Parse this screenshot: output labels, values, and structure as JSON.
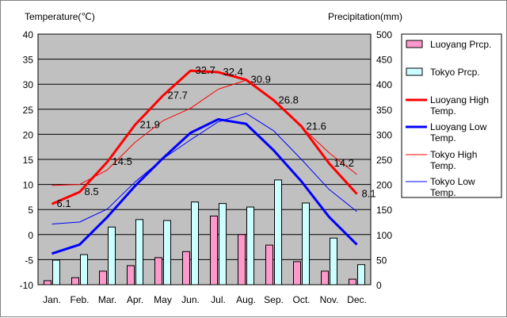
{
  "chart_data": {
    "type": "bar-line-combo",
    "left_axis_title": "Temperature(℃)",
    "right_axis_title": "Precipitation(mm)",
    "left_ylim": [
      -10,
      40
    ],
    "right_ylim": [
      0,
      500
    ],
    "left_ticks": [
      "40",
      "35",
      "30",
      "25",
      "20",
      "15",
      "10",
      "5",
      "0",
      "-5",
      "-10"
    ],
    "right_ticks": [
      "500",
      "450",
      "400",
      "350",
      "300",
      "250",
      "200",
      "150",
      "100",
      "50",
      "0"
    ],
    "categories": [
      "Jan.",
      "Feb.",
      "Mar.",
      "Apr.",
      "May",
      "Jun.",
      "Jul.",
      "Aug.",
      "Sep.",
      "Oct.",
      "Nov.",
      "Dec."
    ],
    "bars": [
      {
        "name": "Luoyang Prcp.",
        "color": "#ff99cc",
        "values": [
          8,
          14,
          27,
          38,
          54,
          66,
          137,
          100,
          79,
          46,
          27,
          11
        ]
      },
      {
        "name": "Tokyo Prcp.",
        "color": "#ccffff",
        "values": [
          49,
          60,
          115,
          130,
          128,
          165,
          162,
          155,
          209,
          163,
          93,
          40
        ]
      }
    ],
    "lines": [
      {
        "name": "Luoyang High Temp.",
        "color": "#ff0000",
        "width": 3,
        "values": [
          6.1,
          8.5,
          14.5,
          21.9,
          27.7,
          32.7,
          32.4,
          30.9,
          26.8,
          21.6,
          14.2,
          8.1
        ]
      },
      {
        "name": "Luoyang Low Temp.",
        "color": "#0000ff",
        "width": 3,
        "values": [
          -3.8,
          -2.0,
          3.5,
          9.7,
          15.2,
          20.3,
          23.0,
          22.1,
          16.8,
          10.6,
          3.5,
          -2.0
        ]
      },
      {
        "name": "Tokyo High Temp.",
        "color": "#ff0000",
        "width": 1,
        "values": [
          9.8,
          10.0,
          12.9,
          18.4,
          22.7,
          25.2,
          29.0,
          30.8,
          26.9,
          21.5,
          16.3,
          12.0
        ]
      },
      {
        "name": "Tokyo Low Temp.",
        "color": "#0000ff",
        "width": 1,
        "values": [
          2.1,
          2.5,
          5.1,
          10.5,
          15.1,
          18.9,
          22.5,
          24.2,
          20.7,
          15.0,
          9.0,
          4.6
        ]
      }
    ],
    "data_labels": [
      "6.1",
      "8.5",
      "14.5",
      "21.9",
      "27.7",
      "32.7",
      "32.4",
      "30.9",
      "26.8",
      "21.6",
      "14.2",
      "8.1"
    ],
    "legend": {
      "position": "right",
      "entries": [
        {
          "label_lines": [
            "Luoyang Prcp."
          ],
          "kind": "bar",
          "color": "#ff99cc"
        },
        {
          "label_lines": [
            "Tokyo Prcp."
          ],
          "kind": "bar",
          "color": "#ccffff"
        },
        {
          "label_lines": [
            "Luoyang High",
            "Temp."
          ],
          "kind": "line",
          "color": "#ff0000",
          "width": 3
        },
        {
          "label_lines": [
            "Luoyang Low",
            "Temp."
          ],
          "kind": "line",
          "color": "#0000ff",
          "width": 3
        },
        {
          "label_lines": [
            "Tokyo High",
            "Temp."
          ],
          "kind": "line",
          "color": "#ff0000",
          "width": 1
        },
        {
          "label_lines": [
            "Tokyo Low",
            "Temp."
          ],
          "kind": "line",
          "color": "#0000ff",
          "width": 1
        }
      ]
    },
    "plot_background": "#c0c0c0",
    "grid": true
  }
}
